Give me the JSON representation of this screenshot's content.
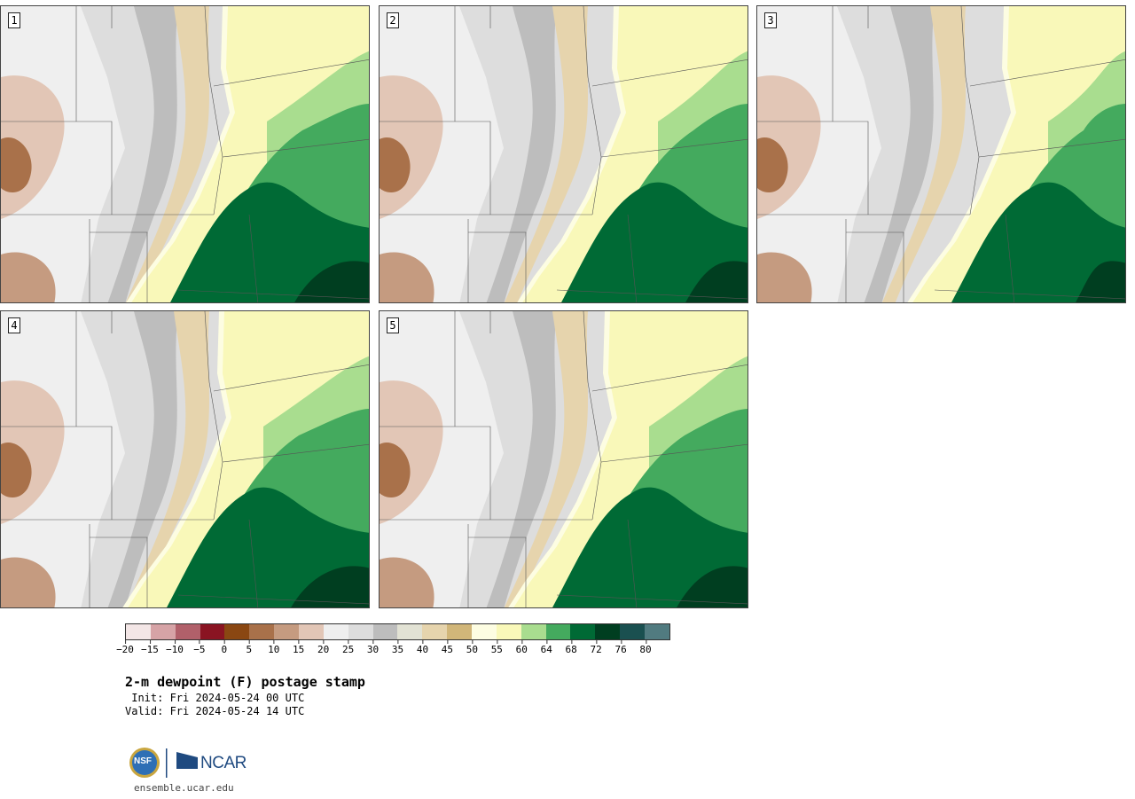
{
  "figure": {
    "title": "2-m dewpoint (F) postage stamp",
    "init": " Init: Fri 2024-05-24 00 UTC",
    "valid": "Valid: Fri 2024-05-24 14 UTC",
    "footer_url": "ensemble.ucar.edu",
    "logos": {
      "nsf": "NSF",
      "ncar": "NCAR"
    }
  },
  "panels": [
    {
      "label": "1",
      "front_offset": 0
    },
    {
      "label": "2",
      "front_offset": 14
    },
    {
      "label": "3",
      "front_offset": 28
    },
    {
      "label": "4",
      "front_offset": -4
    },
    {
      "label": "5",
      "front_offset": 4
    }
  ],
  "colorbar": {
    "segments": [
      "#f3e6e6",
      "#d6a3a6",
      "#b1606a",
      "#8a1422",
      "#8a4712",
      "#a9714a",
      "#c59b80",
      "#e2c6b6",
      "#efefef",
      "#dddddd",
      "#bdbdbd",
      "#e2e2d4",
      "#e6d4ad",
      "#d1b679",
      "#fdfde2",
      "#f9f8b9",
      "#a9dd8f",
      "#44aa5e",
      "#006a35",
      "#003e20",
      "#1a5050",
      "#517b80"
    ],
    "tick_labels": [
      "−20",
      "−15",
      "−10",
      "−5",
      "0",
      "5",
      "10",
      "15",
      "20",
      "25",
      "30",
      "35",
      "40",
      "45",
      "50",
      "55",
      "60",
      "64",
      "68",
      "72",
      "76",
      "80"
    ]
  }
}
